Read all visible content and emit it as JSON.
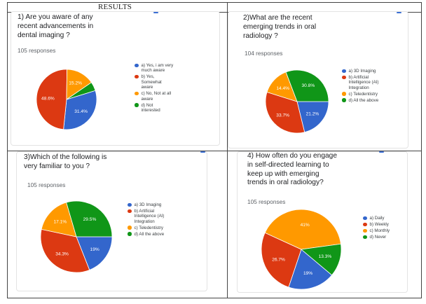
{
  "header": {
    "results_label": "RESULTS"
  },
  "colors": {
    "blue": "#3366cc",
    "red": "#dc3912",
    "orange": "#ff9900",
    "green": "#109618"
  },
  "panels": [
    {
      "title": "1) Are you aware of any\nrecent  advancements in\ndental imaging  ?",
      "responses": "105 responses"
    },
    {
      "title": "2)What are the recent\nemerging trends in oral\nradiology ?",
      "responses": "104 responses"
    },
    {
      "title": "3)Which of the following is\nvery familiar to you ?",
      "responses": "105 responses"
    },
    {
      "title": "4) How often do you engage\nin self-directed learning to\nkeep up with emerging\ntrends in oral radiology?",
      "responses": "105 responses"
    }
  ],
  "chart_data": [
    {
      "type": "pie",
      "title": "1) Are you aware of any recent  advancements in dental imaging  ?",
      "categories": [
        "a) Yes, i am very much aware",
        "b) Yes, Somewhat aware",
        "c) No, Not at all aware",
        "d) Not interested"
      ],
      "values": [
        31.4,
        48.6,
        15.2,
        4.8
      ],
      "labels": [
        "31.4%",
        "48.6%",
        "15.2%",
        ""
      ],
      "colors": [
        "#3366cc",
        "#dc3912",
        "#ff9900",
        "#109618"
      ]
    },
    {
      "type": "pie",
      "title": "2)What are the recent emerging trends in oral radiology ?",
      "categories": [
        "a) 3D Imaging",
        "b) Artificial Intelligence (AI) Integration",
        "c) Teledentistry",
        "d) All the above"
      ],
      "values": [
        21.2,
        33.7,
        14.4,
        30.8
      ],
      "labels": [
        "21.2%",
        "33.7%",
        "14.4%",
        "30.8%"
      ],
      "colors": [
        "#3366cc",
        "#dc3912",
        "#ff9900",
        "#109618"
      ]
    },
    {
      "type": "pie",
      "title": "3)Which of the following is very familiar to you ?",
      "categories": [
        "a) 3D Imaging",
        "b) Artificial Intelligence (AI) Integration",
        "c) Teledentistry",
        "d) All the above"
      ],
      "values": [
        19,
        34.3,
        17.1,
        29.5
      ],
      "labels": [
        "19%",
        "34.3%",
        "17.1%",
        "29.5%"
      ],
      "colors": [
        "#3366cc",
        "#dc3912",
        "#ff9900",
        "#109618"
      ]
    },
    {
      "type": "pie",
      "title": "4) How often do you engage in self-directed learning to keep up with emerging trends in oral radiology?",
      "categories": [
        "a) Daily",
        "b) Weekly",
        "c) Monthly",
        "d) Never"
      ],
      "values": [
        19,
        26.7,
        41,
        13.3
      ],
      "labels": [
        "19%",
        "26.7%",
        "41%",
        "13.3%"
      ],
      "colors": [
        "#3366cc",
        "#dc3912",
        "#ff9900",
        "#109618"
      ]
    }
  ],
  "legends": [
    [
      "a) Yes, i am very\nmuch aware",
      "b) Yes,\nSomewhat\naware",
      "c) No, Not at all\naware",
      "d) Not\ninterested"
    ],
    [
      "a) 3D Imaging",
      "b) Artificial\nIntelligence (AI)\nIntegration",
      "c) Teledentistry",
      "d) All the above"
    ],
    [
      "a) 3D Imaging",
      "b) Artificial\nIntelligence (AI)\nIntegration",
      "c) Teledentistry",
      "d) All the above"
    ],
    [
      "a) Daily",
      "b) Weekly",
      "c) Monthly",
      "d) Never"
    ]
  ]
}
